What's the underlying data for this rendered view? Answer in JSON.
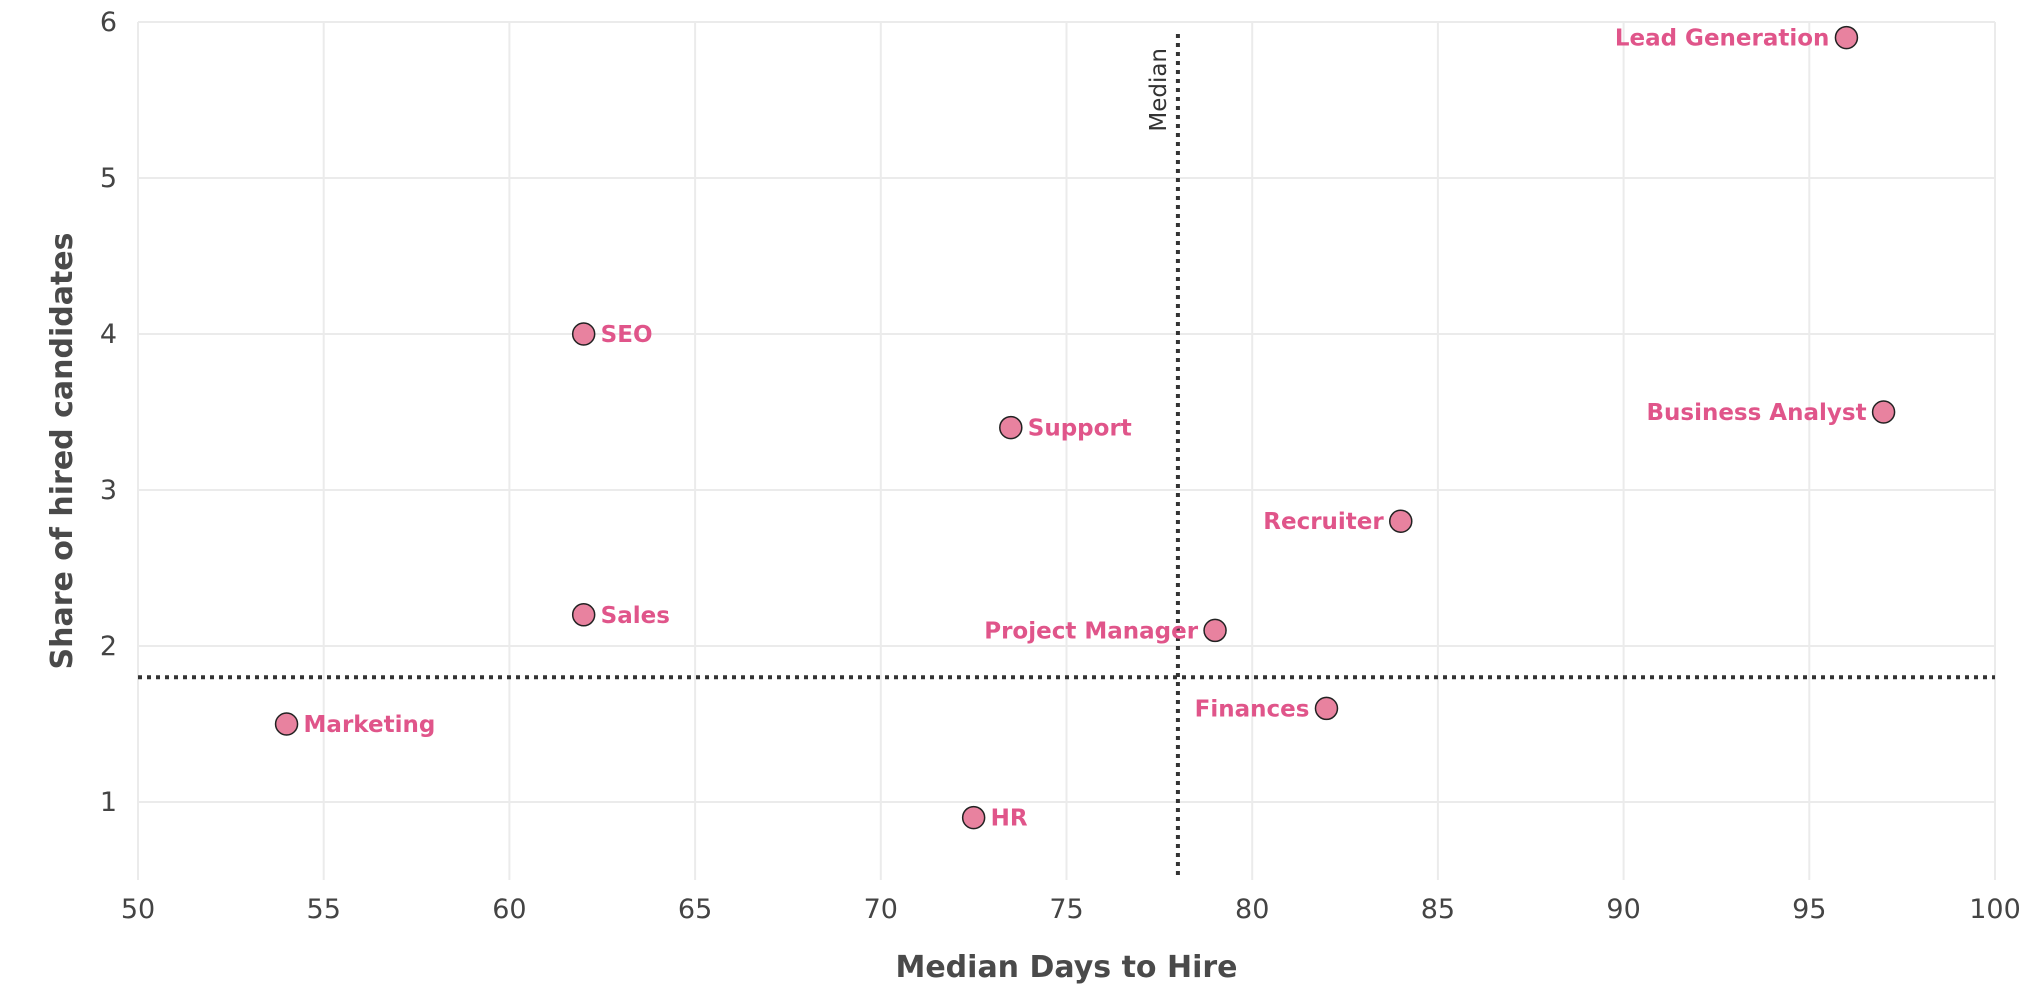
{
  "chart_data": {
    "type": "scatter",
    "xlabel": "Median Days to Hire",
    "ylabel": "Share of hired candidates",
    "xlim": [
      50,
      100
    ],
    "ylim": [
      0.5,
      6
    ],
    "x_ticks": [
      50,
      55,
      60,
      65,
      70,
      75,
      80,
      85,
      90,
      95,
      100
    ],
    "y_ticks": [
      1,
      2,
      3,
      4,
      5,
      6
    ],
    "grid": true,
    "point_color": "#e8829f",
    "label_color": "#e0558a",
    "reference_lines": {
      "vertical": {
        "x": 78,
        "label": "Median"
      },
      "horizontal": {
        "y": 1.8
      }
    },
    "points": [
      {
        "label": "Lead Generation",
        "x": 96,
        "y": 5.9,
        "label_side": "left"
      },
      {
        "label": "Business Analyst",
        "x": 97,
        "y": 3.5,
        "label_side": "left"
      },
      {
        "label": "SEO",
        "x": 62,
        "y": 4.0,
        "label_side": "right"
      },
      {
        "label": "Support",
        "x": 73.5,
        "y": 3.4,
        "label_side": "right"
      },
      {
        "label": "Recruiter",
        "x": 84,
        "y": 2.8,
        "label_side": "left"
      },
      {
        "label": "Project Manager",
        "x": 79,
        "y": 2.1,
        "label_side": "left"
      },
      {
        "label": "Sales",
        "x": 62,
        "y": 2.2,
        "label_side": "right"
      },
      {
        "label": "Finances",
        "x": 82,
        "y": 1.6,
        "label_side": "left"
      },
      {
        "label": "Marketing",
        "x": 54,
        "y": 1.5,
        "label_side": "right"
      },
      {
        "label": "HR",
        "x": 72.5,
        "y": 0.9,
        "label_side": "right"
      }
    ]
  }
}
